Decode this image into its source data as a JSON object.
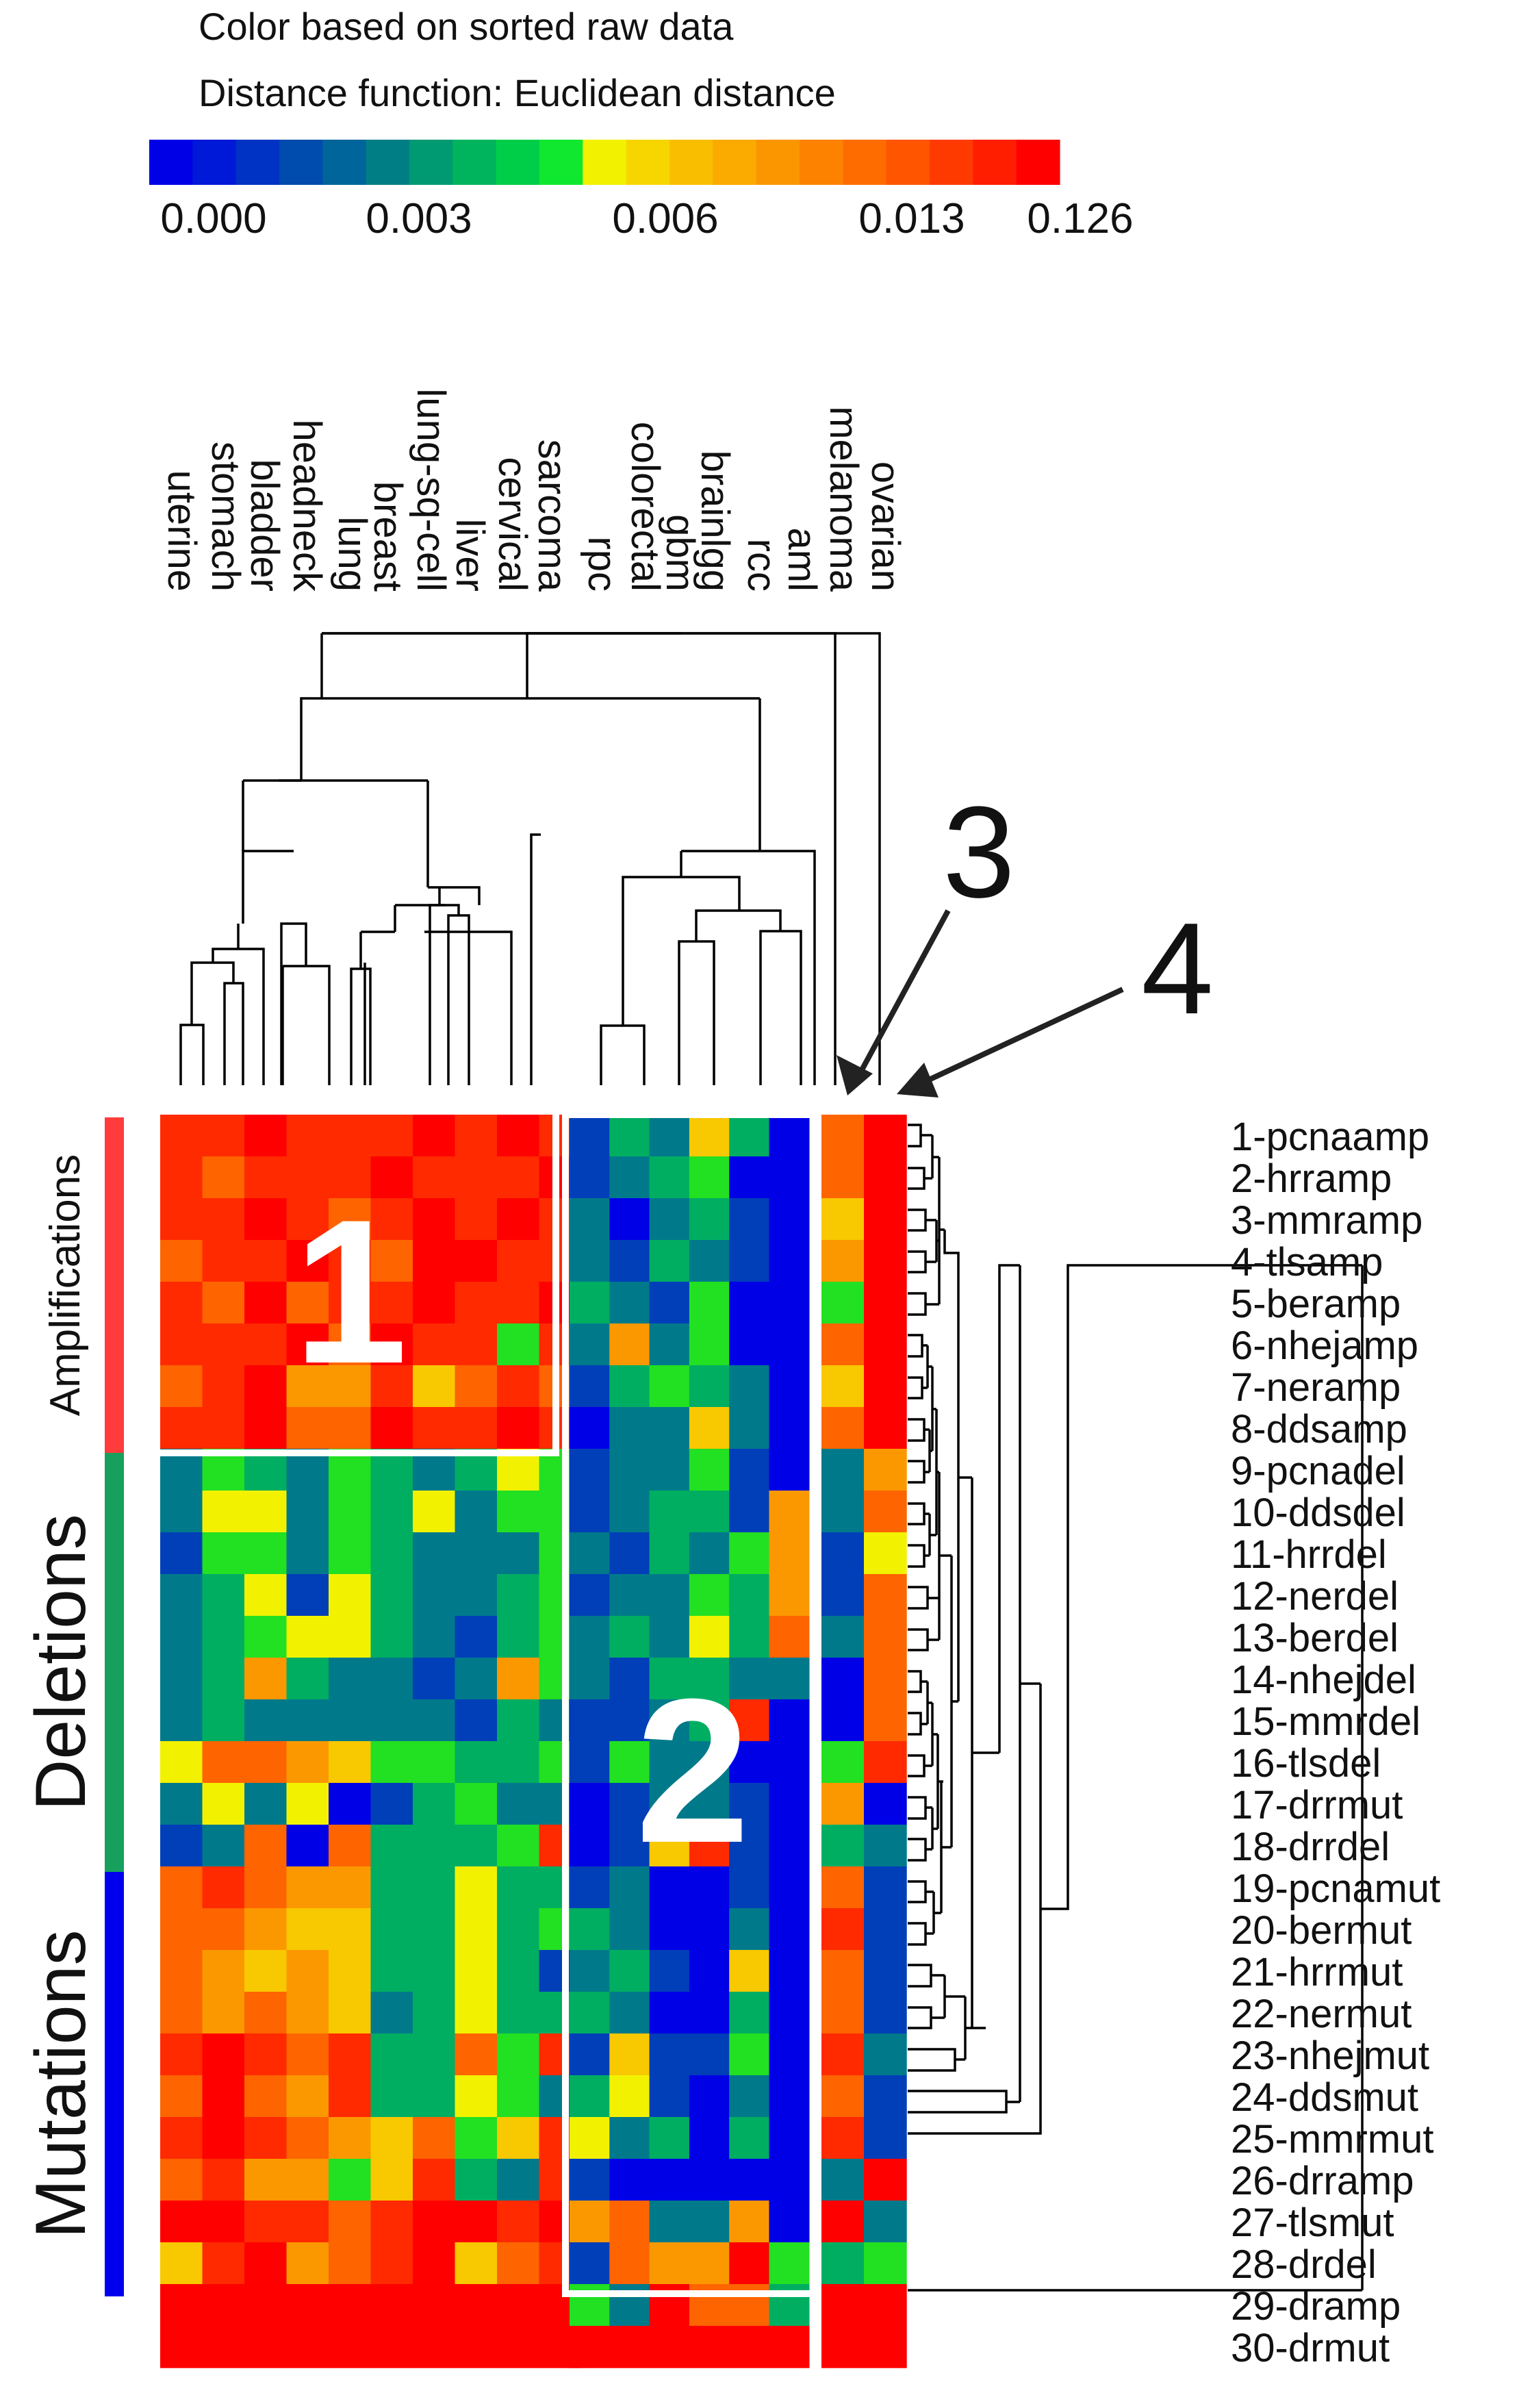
{
  "legend": {
    "line1": "Color based on sorted raw data",
    "line2": "Distance function: Euclidean distance",
    "ticks": [
      "0.000",
      "0.003",
      "0.006",
      "0.013",
      "0.126"
    ],
    "colors": [
      "#0000e6",
      "#0018d8",
      "#0032c4",
      "#004bae",
      "#00659a",
      "#007e86",
      "#009a72",
      "#00b45e",
      "#00ce48",
      "#10e830",
      "#f2f200",
      "#f7d600",
      "#f9be00",
      "#fbaa00",
      "#fc9600",
      "#fd8200",
      "#fe6c00",
      "#ff5500",
      "#ff3a00",
      "#ff1e00",
      "#ff0000"
    ]
  },
  "annotations": {
    "block1": "1",
    "block2": "2",
    "arrow3": "3",
    "arrow4": "4"
  },
  "row_groups": [
    {
      "label": "Amplifications",
      "color": "#ff3b3b"
    },
    {
      "label": "Deletions",
      "color": "#17a05d"
    },
    {
      "label": "Mutations",
      "color": "#0000ee"
    }
  ],
  "palette": {
    "level_colors": [
      "#0000e6",
      "#003fb8",
      "#007a8a",
      "#00ae62",
      "#22e022",
      "#f2f200",
      "#f8c800",
      "#fb9800",
      "#fe6400",
      "#ff2a00",
      "#ff0000"
    ]
  },
  "chart_data": {
    "type": "heatmap",
    "title": "Color based on sorted raw data",
    "subtitle": "Distance function: Euclidean distance",
    "value_scale": "ordinal color level 0 (blue, lowest) to 10 (red, highest); legend ticks 0.000, 0.003, 0.006, 0.013, 0.126",
    "columns": [
      "uterine",
      "stomach",
      "bladder",
      "headneck",
      "lung",
      "breast",
      "lung-sq-cell",
      "liver",
      "cervical",
      "sarcoma",
      "rpc",
      "colorectal",
      "gbm",
      "brainlgg",
      "rcc",
      "aml",
      "melanoma",
      "ovarian"
    ],
    "rows": [
      "1-pcnaamp",
      "2-hrramp",
      "3-mmramp",
      "4-tlsamp",
      "5-beramp",
      "6-nhejamp",
      "7-neramp",
      "8-ddsamp",
      "9-pcnadel",
      "10-ddsdel",
      "11-hrrdel",
      "12-nerdel",
      "13-berdel",
      "14-nhejdel",
      "15-mmrdel",
      "16-tlsdel",
      "17-drrmut",
      "18-drrdel",
      "19-pcnamut",
      "20-bermut",
      "21-hrrmut",
      "22-nermut",
      "23-nhejmut",
      "24-ddsmut",
      "25-mmrmut",
      "26-drramp",
      "27-tlsmut",
      "28-drdel",
      "29-dramp",
      "30-drmut"
    ],
    "matrix": [
      [
        9,
        9,
        10,
        9,
        9,
        9,
        10,
        9,
        10,
        9,
        1,
        3,
        2,
        6,
        3,
        0,
        8,
        10
      ],
      [
        9,
        8,
        9,
        9,
        9,
        10,
        9,
        9,
        9,
        10,
        1,
        2,
        3,
        4,
        0,
        0,
        8,
        10
      ],
      [
        9,
        9,
        10,
        9,
        8,
        9,
        10,
        9,
        10,
        9,
        2,
        0,
        2,
        3,
        1,
        0,
        6,
        10
      ],
      [
        8,
        9,
        9,
        10,
        9,
        8,
        10,
        10,
        9,
        9,
        2,
        1,
        3,
        2,
        1,
        0,
        7,
        10
      ],
      [
        9,
        8,
        10,
        8,
        9,
        9,
        10,
        9,
        9,
        10,
        3,
        2,
        1,
        4,
        0,
        0,
        4,
        10
      ],
      [
        9,
        9,
        9,
        10,
        8,
        10,
        9,
        9,
        4,
        9,
        2,
        7,
        2,
        4,
        0,
        0,
        8,
        10
      ],
      [
        8,
        9,
        10,
        7,
        7,
        9,
        6,
        8,
        9,
        8,
        1,
        3,
        4,
        3,
        2,
        0,
        6,
        10
      ],
      [
        9,
        9,
        10,
        8,
        8,
        10,
        9,
        9,
        10,
        9,
        0,
        2,
        2,
        6,
        2,
        0,
        8,
        10
      ],
      [
        2,
        4,
        3,
        2,
        4,
        3,
        2,
        3,
        5,
        4,
        1,
        2,
        2,
        4,
        1,
        0,
        2,
        7
      ],
      [
        2,
        5,
        5,
        2,
        4,
        3,
        5,
        2,
        4,
        4,
        1,
        2,
        3,
        3,
        1,
        7,
        2,
        8
      ],
      [
        1,
        4,
        4,
        2,
        4,
        3,
        2,
        2,
        2,
        4,
        2,
        1,
        3,
        2,
        4,
        7,
        1,
        5
      ],
      [
        2,
        3,
        5,
        1,
        5,
        3,
        2,
        2,
        3,
        4,
        1,
        2,
        2,
        4,
        3,
        7,
        1,
        8
      ],
      [
        2,
        3,
        4,
        5,
        5,
        3,
        2,
        1,
        3,
        4,
        2,
        3,
        2,
        5,
        3,
        8,
        2,
        8
      ],
      [
        2,
        3,
        7,
        3,
        2,
        2,
        1,
        2,
        7,
        4,
        2,
        1,
        3,
        3,
        2,
        2,
        0,
        8
      ],
      [
        2,
        3,
        2,
        2,
        2,
        2,
        2,
        1,
        3,
        2,
        1,
        1,
        2,
        3,
        9,
        0,
        0,
        8
      ],
      [
        5,
        8,
        8,
        7,
        6,
        4,
        4,
        3,
        3,
        4,
        1,
        4,
        2,
        2,
        0,
        0,
        4,
        9
      ],
      [
        2,
        5,
        2,
        5,
        0,
        1,
        3,
        4,
        2,
        2,
        0,
        1,
        2,
        2,
        1,
        0,
        7,
        0
      ],
      [
        1,
        2,
        8,
        0,
        8,
        3,
        3,
        3,
        4,
        9,
        0,
        1,
        6,
        9,
        1,
        0,
        3,
        2
      ],
      [
        8,
        9,
        8,
        7,
        7,
        3,
        3,
        5,
        3,
        3,
        1,
        2,
        0,
        0,
        1,
        0,
        8,
        1
      ],
      [
        8,
        8,
        7,
        6,
        6,
        3,
        3,
        5,
        3,
        4,
        3,
        2,
        0,
        0,
        2,
        0,
        9,
        1
      ],
      [
        8,
        7,
        6,
        7,
        6,
        3,
        3,
        5,
        3,
        1,
        2,
        3,
        1,
        0,
        6,
        0,
        8,
        1
      ],
      [
        8,
        7,
        8,
        7,
        6,
        2,
        3,
        5,
        3,
        3,
        3,
        2,
        0,
        0,
        3,
        0,
        8,
        1
      ],
      [
        9,
        10,
        9,
        8,
        9,
        3,
        3,
        8,
        4,
        9,
        1,
        6,
        1,
        1,
        4,
        0,
        9,
        2
      ],
      [
        8,
        10,
        8,
        7,
        9,
        3,
        3,
        5,
        4,
        2,
        3,
        5,
        1,
        0,
        2,
        0,
        8,
        1
      ],
      [
        9,
        10,
        9,
        8,
        7,
        6,
        8,
        4,
        6,
        9,
        5,
        2,
        3,
        0,
        3,
        0,
        9,
        1
      ],
      [
        8,
        9,
        7,
        7,
        4,
        6,
        9,
        3,
        2,
        9,
        1,
        0,
        0,
        0,
        0,
        0,
        2,
        10
      ],
      [
        10,
        10,
        9,
        9,
        8,
        9,
        10,
        10,
        9,
        10,
        7,
        8,
        2,
        2,
        7,
        0,
        10,
        2
      ],
      [
        6,
        9,
        10,
        7,
        8,
        9,
        10,
        6,
        8,
        9,
        1,
        8,
        7,
        7,
        10,
        4,
        3,
        4
      ],
      [
        10,
        10,
        10,
        10,
        10,
        10,
        10,
        10,
        10,
        10,
        4,
        2,
        10,
        8,
        8,
        3,
        10,
        10
      ],
      [
        10,
        10,
        10,
        10,
        10,
        10,
        10,
        10,
        10,
        10,
        10,
        10,
        10,
        10,
        10,
        10,
        10,
        10
      ]
    ]
  }
}
